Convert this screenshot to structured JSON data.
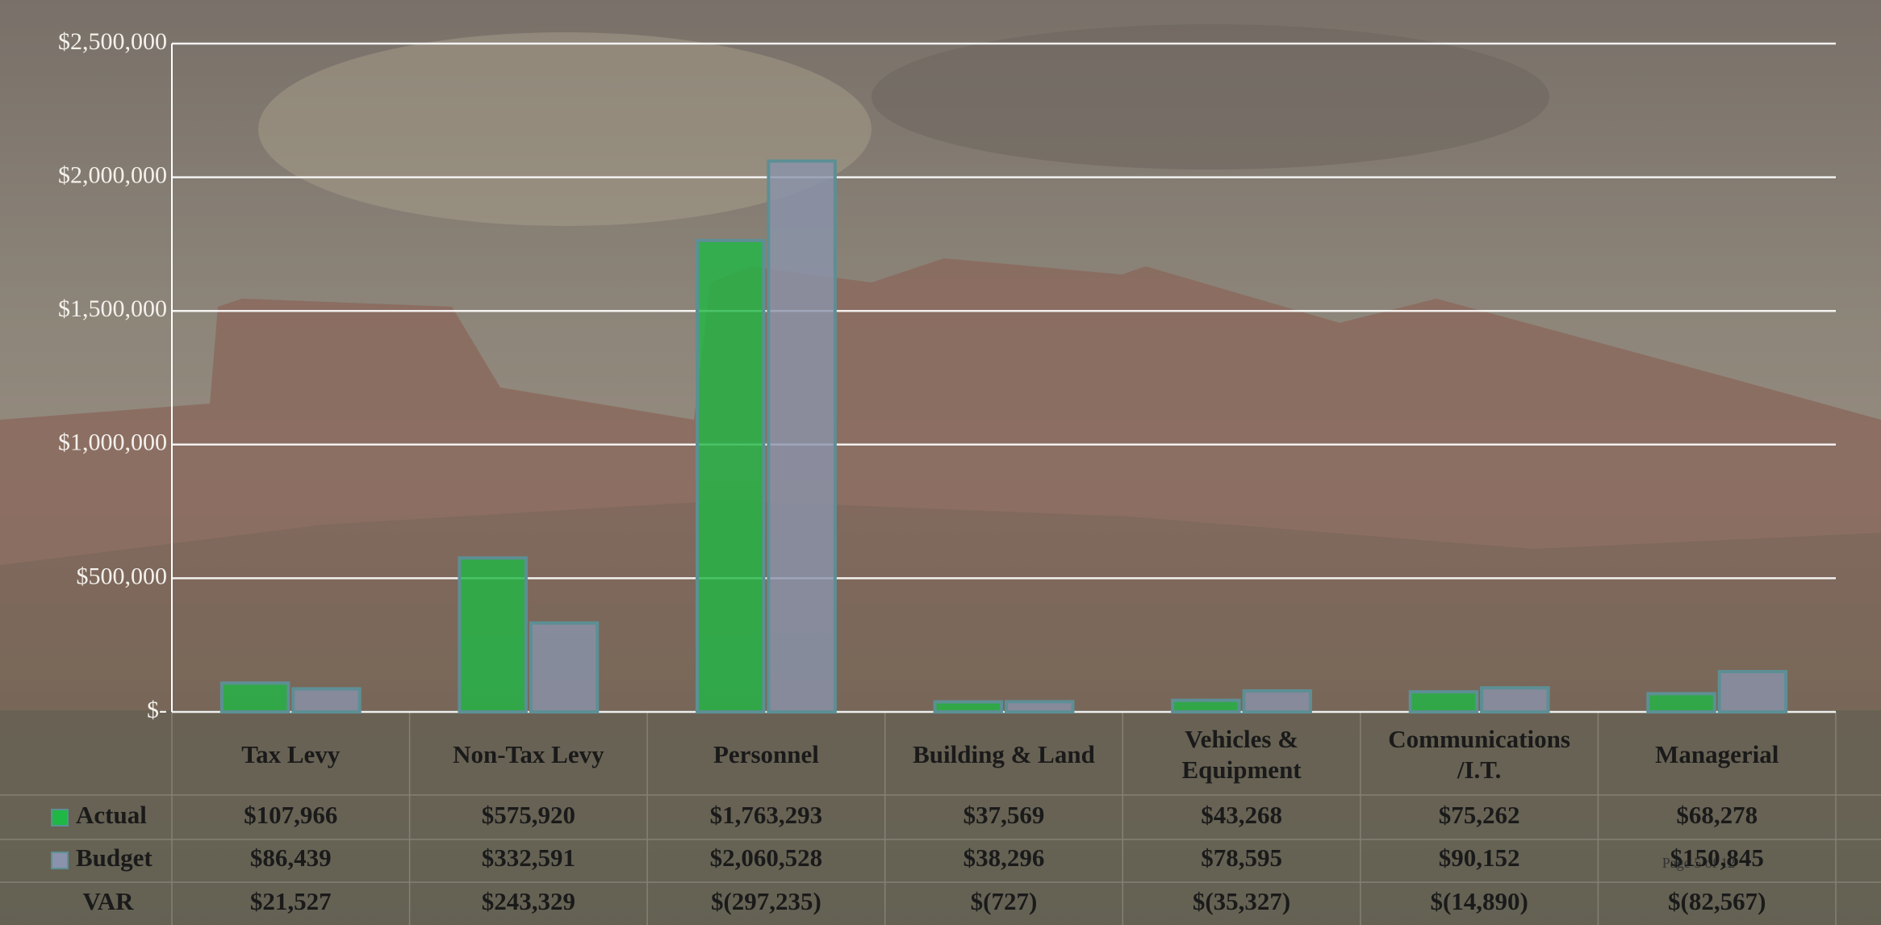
{
  "chart_data": {
    "type": "bar",
    "categories": [
      "Tax Levy",
      "Non-Tax Levy",
      "Personnel",
      "Building & Land",
      "Vehicles & Equipment",
      "Communications /I.T.",
      "Managerial"
    ],
    "series": [
      {
        "name": "Actual",
        "color": "#1fb845",
        "values": [
          107966,
          575920,
          1763293,
          37569,
          43268,
          75262,
          68278
        ],
        "value_labels": [
          "$107,966",
          "$575,920",
          "$1,763,293",
          "$37,569",
          "$43,268",
          "$75,262",
          "$68,278"
        ]
      },
      {
        "name": "Budget",
        "color": "#8a93ab",
        "values": [
          86439,
          332591,
          2060528,
          38296,
          78595,
          90152,
          150845
        ],
        "value_labels": [
          "$86,439",
          "$332,591",
          "$2,060,528",
          "$38,296",
          "$78,595",
          "$90,152",
          "$150,845"
        ]
      }
    ],
    "variance": {
      "name": "VAR",
      "values": [
        21527,
        243329,
        -297235,
        -727,
        -35327,
        -14890,
        -82567
      ],
      "value_labels": [
        "$21,527",
        "$243,329",
        "$(297,235)",
        "$(727)",
        "$(35,327)",
        "$(14,890)",
        "$(82,567)"
      ]
    },
    "ylim": [
      0,
      2500000
    ],
    "yticks": [
      {
        "value": 0,
        "label": "$-"
      },
      {
        "value": 500000,
        "label": "$500,000"
      },
      {
        "value": 1000000,
        "label": "$1,000,000"
      },
      {
        "value": 1500000,
        "label": "$1,500,000"
      },
      {
        "value": 2000000,
        "label": "$2,000,000"
      },
      {
        "value": 2500000,
        "label": "$2,500,000"
      }
    ],
    "grid": true,
    "page_label": "Page 5 of 12"
  }
}
